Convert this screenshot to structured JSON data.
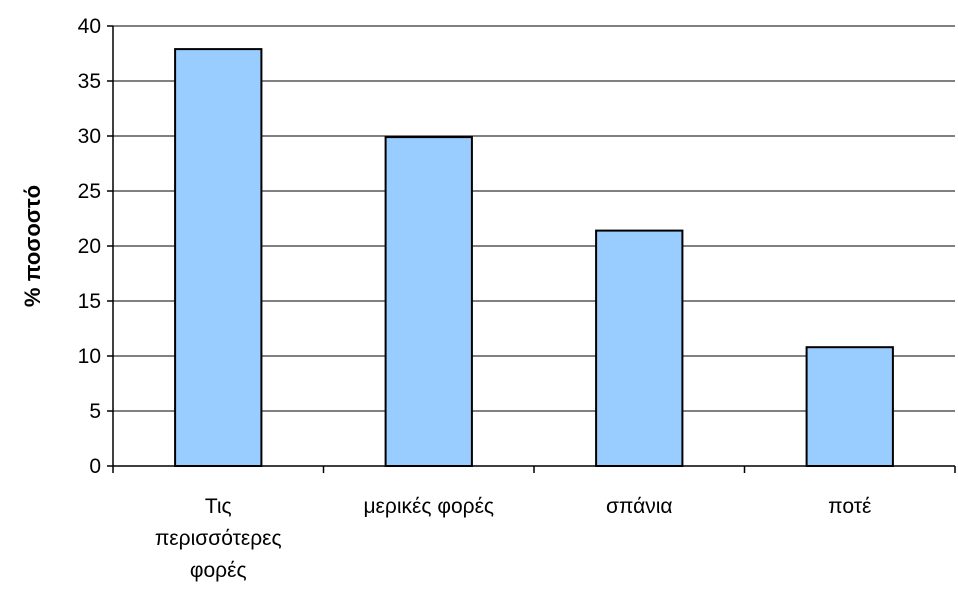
{
  "chart_data": {
    "type": "bar",
    "categories": [
      [
        "Τις",
        "περισσότερες",
        "φορές"
      ],
      [
        "μερικές φορές"
      ],
      [
        "σπάνια"
      ],
      [
        "ποτέ"
      ]
    ],
    "values": [
      37.9,
      29.9,
      21.4,
      10.8
    ],
    "title": "",
    "xlabel": "",
    "ylabel": "% ποσοστό",
    "ylim": [
      0,
      40
    ],
    "yticks": [
      0,
      5,
      10,
      15,
      20,
      25,
      30,
      35,
      40
    ],
    "grid": true,
    "legend": "none",
    "bar_color": "#99CCFF",
    "bar_edge_color": "#000000"
  }
}
